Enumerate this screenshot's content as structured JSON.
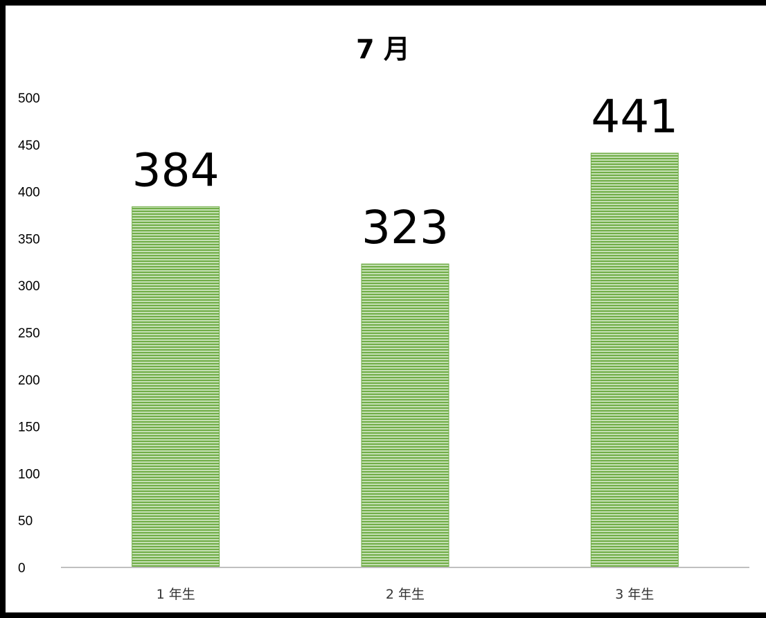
{
  "chart_data": {
    "type": "bar",
    "title": "7 月",
    "categories": [
      "1 年生",
      "2 年生",
      "3 年生"
    ],
    "values": [
      384,
      323,
      441
    ],
    "data_labels": [
      "384",
      "323",
      "441"
    ],
    "ylim": [
      0,
      500
    ],
    "yticks": [
      "0",
      "50",
      "100",
      "150",
      "200",
      "250",
      "300",
      "350",
      "400",
      "450",
      "500"
    ],
    "xlabel": "",
    "ylabel": "",
    "grid": false,
    "legend": "none",
    "colors": {
      "bar": "#70ad47",
      "bar_stripe": "#c5e0b4",
      "axis": "#bfbfbf",
      "border": "#000000"
    }
  }
}
